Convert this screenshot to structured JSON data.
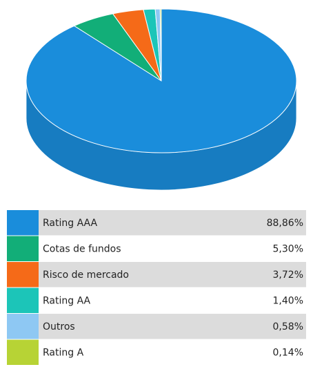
{
  "chart_data": {
    "type": "pie",
    "categories": [
      "Rating AAA",
      "Cotas de fundos",
      "Risco de mercado",
      "Rating AA",
      "Outros",
      "Rating A"
    ],
    "values": [
      88.86,
      5.3,
      3.72,
      1.4,
      0.58,
      0.14
    ],
    "value_labels": [
      "88,86%",
      "5,30%",
      "3,72%",
      "1,40%",
      "0,58%",
      "0,14%"
    ],
    "colors": [
      "#1a8ddb",
      "#12ae78",
      "#f56a18",
      "#1cc5b8",
      "#8ec8f3",
      "#b7d335"
    ]
  }
}
